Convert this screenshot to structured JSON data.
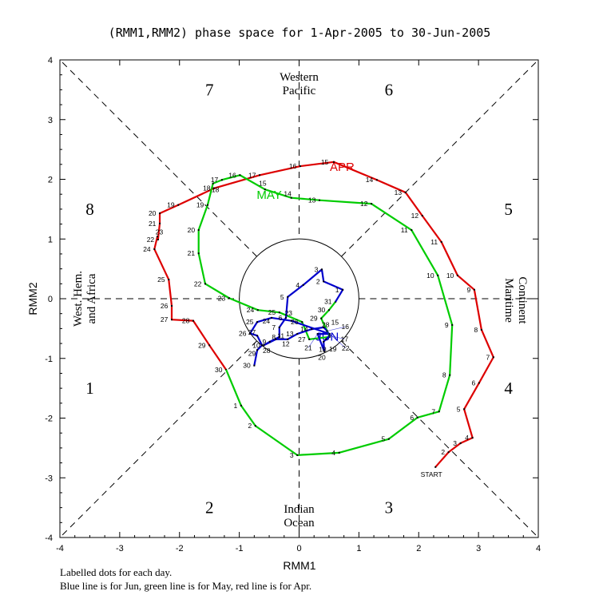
{
  "chart_data": {
    "type": "line",
    "title": "(RMM1,RMM2) phase space for  1-Apr-2005 to 30-Jun-2005",
    "xlabel": "RMM1",
    "ylabel": "RMM2",
    "xlim": [
      -4,
      4
    ],
    "ylim": [
      -4,
      4
    ],
    "xticks": [
      "-4",
      "-3",
      "-2",
      "-1",
      "0",
      "1",
      "2",
      "3",
      "4"
    ],
    "yticks": [
      "-4",
      "-3",
      "-2",
      "-1",
      "0",
      "1",
      "2",
      "3",
      "4"
    ],
    "grid": false,
    "phases": [
      {
        "label": "1",
        "at": [
          -3.5,
          -1.5
        ]
      },
      {
        "label": "2",
        "at": [
          -1.5,
          -3.5
        ]
      },
      {
        "label": "3",
        "at": [
          1.5,
          -3.5
        ]
      },
      {
        "label": "4",
        "at": [
          3.5,
          -1.5
        ]
      },
      {
        "label": "5",
        "at": [
          3.5,
          1.5
        ]
      },
      {
        "label": "6",
        "at": [
          1.5,
          3.5
        ]
      },
      {
        "label": "7",
        "at": [
          -1.5,
          3.5
        ]
      },
      {
        "label": "8",
        "at": [
          -3.5,
          1.5
        ]
      }
    ],
    "regions": {
      "top": [
        "Western",
        "Pacific"
      ],
      "bottom": [
        "Indian",
        "Ocean"
      ],
      "left": [
        "West. Hem.",
        "and Africa"
      ],
      "right": [
        "Maritime",
        "Continent"
      ]
    },
    "start_label": "START",
    "series": [
      {
        "name": "Apr",
        "label": "APR",
        "color": "#dd0000",
        "label_at": [
          0.72,
          2.22
        ],
        "points": [
          [
            2.28,
            -2.82
          ],
          [
            2.5,
            -2.57
          ],
          [
            2.7,
            -2.42
          ],
          [
            2.9,
            -2.33
          ],
          [
            2.76,
            -1.85
          ],
          [
            3.01,
            -1.41
          ],
          [
            3.25,
            -0.98
          ],
          [
            3.05,
            -0.52
          ],
          [
            2.93,
            0.15
          ],
          [
            2.65,
            0.39
          ],
          [
            2.38,
            0.95
          ],
          [
            2.06,
            1.39
          ],
          [
            1.78,
            1.78
          ],
          [
            1.3,
            1.99
          ],
          [
            0.58,
            2.29
          ],
          [
            0.02,
            2.22
          ],
          [
            -0.66,
            2.07
          ],
          [
            -1.42,
            1.85
          ],
          [
            -2.02,
            1.57
          ],
          [
            -2.33,
            1.43
          ],
          [
            -2.33,
            1.26
          ],
          [
            -2.36,
            0.99
          ],
          [
            -2.37,
            1.04
          ],
          [
            -2.42,
            0.83
          ],
          [
            -2.18,
            0.32
          ],
          [
            -2.13,
            -0.12
          ],
          [
            -2.13,
            -0.35
          ],
          [
            -1.77,
            -0.37
          ],
          [
            -1.5,
            -0.78
          ],
          [
            -1.22,
            -1.19
          ]
        ]
      },
      {
        "name": "May",
        "label": "MAY",
        "color": "#00cc00",
        "label_at": [
          -0.5,
          1.75
        ],
        "points": [
          [
            -0.97,
            -1.79
          ],
          [
            -0.73,
            -2.13
          ],
          [
            -0.03,
            -2.62
          ],
          [
            0.67,
            -2.58
          ],
          [
            1.5,
            -2.35
          ],
          [
            1.98,
            -1.99
          ],
          [
            2.34,
            -1.89
          ],
          [
            2.52,
            -1.28
          ],
          [
            2.56,
            -0.44
          ],
          [
            2.32,
            0.39
          ],
          [
            1.88,
            1.15
          ],
          [
            1.21,
            1.59
          ],
          [
            0.34,
            1.65
          ],
          [
            -0.13,
            1.69
          ],
          [
            -0.57,
            1.83
          ],
          [
            -0.99,
            2.07
          ],
          [
            -1.29,
            1.99
          ],
          [
            -1.44,
            1.93
          ],
          [
            -1.53,
            1.57
          ],
          [
            -1.68,
            1.15
          ],
          [
            -1.68,
            0.76
          ],
          [
            -1.57,
            0.25
          ],
          [
            -1.17,
            0.01
          ],
          [
            -0.69,
            -0.19
          ],
          [
            -0.33,
            -0.23
          ],
          [
            0.05,
            -0.39
          ],
          [
            0.17,
            -0.68
          ],
          [
            0.51,
            -0.64
          ],
          [
            0.37,
            -0.33
          ],
          [
            0.5,
            -0.19
          ],
          [
            0.61,
            -0.05
          ]
        ]
      },
      {
        "name": "Jun",
        "label": "JUN",
        "color": "#0000cc",
        "label_at": [
          0.47,
          -0.62
        ],
        "points": [
          [
            0.73,
            0.15
          ],
          [
            0.41,
            0.29
          ],
          [
            0.38,
            0.49
          ],
          [
            0.07,
            0.23
          ],
          [
            -0.19,
            0.03
          ],
          [
            -0.22,
            -0.32
          ],
          [
            -0.33,
            -0.48
          ],
          [
            -0.33,
            -0.64
          ],
          [
            -0.49,
            -0.72
          ],
          [
            -0.59,
            -0.78
          ],
          [
            -0.39,
            -0.68
          ],
          [
            -0.19,
            -0.68
          ],
          [
            -0.03,
            -0.59
          ],
          [
            0.21,
            -0.51
          ],
          [
            0.41,
            -0.48
          ],
          [
            0.47,
            -0.54
          ],
          [
            0.51,
            -0.62
          ],
          [
            0.45,
            -0.68
          ],
          [
            0.41,
            -0.72
          ],
          [
            0.42,
            -0.88
          ],
          [
            0.31,
            -0.59
          ],
          [
            0.51,
            -0.59
          ],
          [
            -0.13,
            -0.37
          ],
          [
            -0.46,
            -0.32
          ],
          [
            -0.7,
            -0.39
          ],
          [
            -0.82,
            -0.58
          ],
          [
            -0.7,
            -0.62
          ],
          [
            -0.62,
            -0.78
          ],
          [
            -0.7,
            -0.86
          ],
          [
            -0.75,
            -1.12
          ]
        ]
      }
    ],
    "footnotes": [
      "Labelled dots for each day.",
      "Blue line is for Jun, green line is for May, red line is for Apr."
    ]
  }
}
